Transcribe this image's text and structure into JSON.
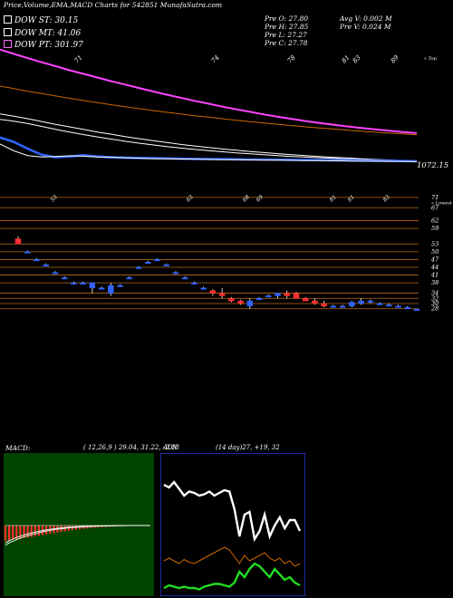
{
  "header": {
    "title": "Price,Volume,EMA,MACD Charts for 542851 MunafaSutra.com",
    "legend": [
      {
        "label": "DOW ST: 30.15",
        "color": "#ffffff"
      },
      {
        "label": "DOW MT: 41.06",
        "color": "#ffffff"
      },
      {
        "label": "DOW PT: 301.97",
        "color": "#ff66ff"
      }
    ],
    "ohlc": {
      "open": "Pre   O: 27.80",
      "high": "Pre   H: 27.85",
      "low": "Pre   L: 27.27",
      "close": "Pre   C: 27.78",
      "avg_volume": "Avg V: 0.002  M",
      "pre_volume": "Pre   V: 0.024  M"
    }
  },
  "chart_data": [
    {
      "type": "line",
      "name": "ema-panel",
      "x": [
        0,
        1,
        2,
        3,
        4,
        5,
        6,
        7,
        8,
        9,
        10,
        11,
        12,
        13,
        14,
        15,
        16,
        17,
        18,
        19,
        20,
        21,
        22,
        23,
        24,
        25,
        26,
        27,
        28,
        29,
        30
      ],
      "series": [
        {
          "values": [
            1310,
            1290,
            1270,
            1251,
            1233,
            1214,
            1197,
            1180,
            1163,
            1147,
            1131,
            1115,
            1100,
            1086,
            1071,
            1058,
            1044,
            1032,
            1020,
            1008,
            997,
            987,
            977,
            968,
            960,
            952,
            945,
            938,
            932,
            926,
            921
          ],
          "color": "#ff44ff"
        },
        {
          "values": [
            1140,
            1128,
            1116,
            1105,
            1094,
            1083,
            1073,
            1063,
            1053,
            1044,
            1035,
            1026,
            1018,
            1010,
            1002,
            995,
            988,
            981,
            974,
            968,
            962,
            956,
            950,
            945,
            940,
            935,
            930,
            925,
            921,
            917,
            913
          ],
          "color": "#cc6600"
        },
        {
          "values": [
            1010,
            1000,
            988,
            975,
            962,
            950,
            938,
            926,
            916,
            905,
            895,
            886,
            877,
            868,
            861,
            854,
            847,
            841,
            835,
            830,
            825,
            820,
            816,
            812,
            808,
            805,
            801,
            798,
            796,
            793,
            790
          ],
          "color": "#ffffff"
        },
        {
          "values": [
            985,
            976,
            965,
            952,
            938,
            926,
            914,
            903,
            893,
            883,
            874,
            866,
            858,
            851,
            845,
            839,
            834,
            829,
            824,
            820,
            816,
            812,
            809,
            806,
            803,
            800,
            798,
            795,
            793,
            791,
            789
          ],
          "color": "#ffffff"
        },
        {
          "values": [
            900,
            880,
            848,
            820,
            808,
            812,
            818,
            812,
            808,
            806,
            805,
            804,
            803,
            802,
            801,
            800,
            800,
            799,
            798,
            798,
            797,
            796,
            796,
            795,
            794,
            794,
            793,
            792,
            792,
            791,
            790
          ],
          "color": "#2f62ff"
        },
        {
          "values": [
            870,
            838,
            816,
            810,
            812,
            815,
            813,
            810,
            808,
            806,
            804,
            802,
            801,
            800,
            799,
            798,
            797,
            797,
            796,
            795,
            795,
            794,
            793,
            793,
            792,
            791,
            790,
            790,
            789,
            789,
            788
          ],
          "color": "#ffffff"
        }
      ],
      "y_label": "1072.15",
      "x_labels": [
        "71",
        "74",
        "78",
        "81",
        "83",
        "89"
      ],
      "right_label": "« Top"
    },
    {
      "type": "candlestick",
      "name": "price-panel",
      "x_labels": [
        "53",
        "63",
        "68",
        "69",
        "81",
        "81",
        "83"
      ],
      "right_labels": [
        "71",
        "« Lowest",
        "67",
        "62",
        "59",
        "53",
        "50",
        "47",
        "44",
        "41",
        "38",
        "34",
        "32",
        "30",
        "28"
      ],
      "hlines": [
        71,
        67,
        62,
        59,
        53,
        50,
        47,
        44,
        41,
        38,
        34,
        32,
        30,
        28
      ],
      "candles": [
        {
          "o": 55,
          "h": 56,
          "l": 53,
          "c": 53
        },
        {
          "o": 50,
          "h": 50.5,
          "l": 49.6,
          "c": 50
        },
        {
          "o": 47,
          "h": 47.5,
          "l": 46.5,
          "c": 47
        },
        {
          "o": 45,
          "h": 45.5,
          "l": 44.5,
          "c": 45
        },
        {
          "o": 42,
          "h": 42.5,
          "l": 41.5,
          "c": 42
        },
        {
          "o": 40,
          "h": 40.5,
          "l": 39.5,
          "c": 40
        },
        {
          "o": 38,
          "h": 38.5,
          "l": 37.5,
          "c": 38
        },
        {
          "o": 38,
          "h": 38.5,
          "l": 37.5,
          "c": 38
        },
        {
          "o": 36,
          "h": 38,
          "l": 34,
          "c": 38
        },
        {
          "o": 36,
          "h": 36.5,
          "l": 35.5,
          "c": 36
        },
        {
          "o": 34,
          "h": 38,
          "l": 33,
          "c": 37
        },
        {
          "o": 37,
          "h": 37.5,
          "l": 36.5,
          "c": 37
        },
        {
          "o": 40,
          "h": 40.5,
          "l": 39.5,
          "c": 40
        },
        {
          "o": 44,
          "h": 44.5,
          "l": 43.5,
          "c": 44
        },
        {
          "o": 46,
          "h": 46.5,
          "l": 45.5,
          "c": 46
        },
        {
          "o": 47,
          "h": 47.5,
          "l": 46.5,
          "c": 47
        },
        {
          "o": 45,
          "h": 45.5,
          "l": 44.5,
          "c": 45
        },
        {
          "o": 42,
          "h": 42.5,
          "l": 41.5,
          "c": 42
        },
        {
          "o": 40,
          "h": 40.5,
          "l": 39.5,
          "c": 40
        },
        {
          "o": 38,
          "h": 38.5,
          "l": 37.5,
          "c": 38
        },
        {
          "o": 36,
          "h": 36.5,
          "l": 35.5,
          "c": 36
        },
        {
          "o": 35,
          "h": 35.5,
          "l": 33,
          "c": 34
        },
        {
          "o": 34,
          "h": 36,
          "l": 32,
          "c": 33
        },
        {
          "o": 32,
          "h": 32.5,
          "l": 30.5,
          "c": 31
        },
        {
          "o": 31,
          "h": 31.5,
          "l": 29.5,
          "c": 30
        },
        {
          "o": 29,
          "h": 32,
          "l": 28,
          "c": 31
        },
        {
          "o": 32,
          "h": 32.5,
          "l": 31.5,
          "c": 32
        },
        {
          "o": 33,
          "h": 33.5,
          "l": 32.5,
          "c": 33
        },
        {
          "o": 33,
          "h": 34,
          "l": 32,
          "c": 34
        },
        {
          "o": 34,
          "h": 35,
          "l": 32,
          "c": 33
        },
        {
          "o": 34,
          "h": 34.5,
          "l": 32,
          "c": 32
        },
        {
          "o": 32,
          "h": 32.5,
          "l": 31,
          "c": 31
        },
        {
          "o": 31,
          "h": 32,
          "l": 29.5,
          "c": 30
        },
        {
          "o": 30,
          "h": 31,
          "l": 28.5,
          "c": 29
        },
        {
          "o": 29,
          "h": 29.5,
          "l": 28.5,
          "c": 29
        },
        {
          "o": 29,
          "h": 29.5,
          "l": 28.5,
          "c": 29
        },
        {
          "o": 29,
          "h": 31,
          "l": 28.5,
          "c": 30.5
        },
        {
          "o": 30,
          "h": 32,
          "l": 29.5,
          "c": 31
        },
        {
          "o": 31,
          "h": 31.5,
          "l": 30,
          "c": 30.5
        },
        {
          "o": 30,
          "h": 30.5,
          "l": 29.5,
          "c": 30
        },
        {
          "o": 29.5,
          "h": 30,
          "l": 29,
          "c": 29.5
        },
        {
          "o": 29,
          "h": 29.5,
          "l": 28.5,
          "c": 29
        },
        {
          "o": 28.5,
          "h": 29,
          "l": 28,
          "c": 28.5
        },
        {
          "o": 27.8,
          "h": 27.85,
          "l": 27.27,
          "c": 27.78
        }
      ]
    },
    {
      "type": "bar",
      "name": "macd-panel",
      "label": "MACD:",
      "params": "( 12,26,9 ) 29.04,  31.22,  -2.18",
      "values": [
        -14,
        -13.5,
        -13,
        -12.5,
        -12,
        -11.5,
        -11,
        -10.5,
        -10,
        -9.4,
        -8.8,
        -8.2,
        -7.6,
        -7,
        -6.4,
        -5.8,
        -5.2,
        -4.7,
        -4.2,
        -3.8,
        -3.4,
        -3,
        -2.7,
        -2.4,
        -2.1,
        -1.8,
        -1.6,
        -1.4,
        -1.2,
        -1,
        -0.8,
        -0.6,
        -0.5,
        -0.4,
        -0.3,
        -0.2,
        -0.2,
        -0.1,
        -0.1,
        -0.1
      ],
      "macd_line": [
        -16,
        -14,
        -12.5,
        -11,
        -9.8,
        -8.7,
        -7.7,
        -6.8,
        -6,
        -5.3,
        -4.6,
        -4,
        -3.5,
        -3,
        -2.6,
        -2.2,
        -1.9,
        -1.6,
        -1.4,
        -1.2,
        -1,
        -0.8,
        -0.7,
        -0.6,
        -0.5,
        -0.4,
        -0.3,
        -0.25,
        -0.2,
        -0.15,
        -0.1,
        -0.08,
        -0.06,
        -0.05,
        -0.04,
        -0.03,
        -0.02,
        -0.02,
        -0.01,
        -0.01
      ],
      "signal_line": [
        -18,
        -16,
        -14.5,
        -13,
        -11.6,
        -10.4,
        -9.3,
        -8.3,
        -7.4,
        -6.6,
        -5.8,
        -5.1,
        -4.5,
        -3.9,
        -3.4,
        -3,
        -2.6,
        -2.2,
        -1.9,
        -1.6,
        -1.4,
        -1.2,
        -1,
        -0.85,
        -0.7,
        -0.6,
        -0.5,
        -0.4,
        -0.33,
        -0.27,
        -0.22,
        -0.18,
        -0.14,
        -0.1,
        -0.08,
        -0.06,
        -0.05,
        -0.04,
        -0.03,
        -0.02
      ]
    },
    {
      "type": "line",
      "name": "adx-panel",
      "label": "ADX",
      "params": "(14  day)27,  +19,  32",
      "series": [
        {
          "values": [
            78,
            76,
            80,
            75,
            70,
            73,
            72,
            70,
            71,
            73,
            70,
            72,
            74,
            73,
            60,
            40,
            56,
            58,
            38,
            44,
            56,
            40,
            48,
            54,
            46,
            52,
            52,
            44
          ],
          "color": "#ffffff"
        },
        {
          "values": [
            22,
            24,
            22,
            20,
            23,
            21,
            20,
            22,
            24,
            26,
            28,
            30,
            32,
            30,
            25,
            20,
            26,
            22,
            24,
            26,
            28,
            24,
            22,
            24,
            20,
            22,
            18,
            20
          ],
          "color": "#cc6600"
        },
        {
          "values": [
            2,
            4,
            3,
            2,
            3,
            2,
            2,
            1,
            3,
            4,
            5,
            5,
            4,
            3,
            6,
            14,
            10,
            16,
            20,
            18,
            14,
            10,
            16,
            12,
            8,
            10,
            6,
            4
          ],
          "color": "#22dd22"
        }
      ],
      "ylim": [
        0,
        100
      ]
    }
  ]
}
